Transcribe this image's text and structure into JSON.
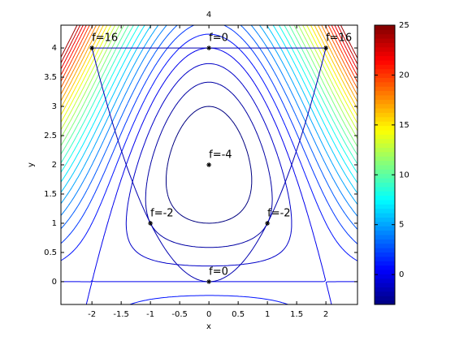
{
  "chart_data": {
    "type": "contour",
    "title": "4",
    "x_label": "x",
    "y_label": "y",
    "xlim": [
      -2.53,
      2.54
    ],
    "ylim": [
      -0.39,
      4.39
    ],
    "xticks": [
      -2,
      -1.5,
      -1,
      -0.5,
      0,
      0.5,
      1,
      1.5,
      2
    ],
    "yticks": [
      0,
      0.5,
      1,
      1.5,
      2,
      2.5,
      3,
      3.5,
      4
    ],
    "levels": [
      -3,
      -2,
      -1,
      0,
      1,
      2,
      3,
      4,
      5,
      6,
      7,
      8,
      9,
      10,
      11,
      12,
      13,
      14,
      15,
      16,
      17,
      18,
      19,
      20,
      21,
      22,
      23,
      24
    ],
    "clim": [
      -3,
      25
    ],
    "colorbar_ticks": [
      0,
      5,
      10,
      15,
      20,
      25
    ],
    "colormap": "jet",
    "line_color": "#0000b0",
    "points": [
      {
        "x": -2,
        "y": 4,
        "label": "f=16"
      },
      {
        "x": 0,
        "y": 4,
        "label": "f=0"
      },
      {
        "x": 2,
        "y": 4,
        "label": "f=16"
      },
      {
        "x": 0,
        "y": 2,
        "label": "f=-4"
      },
      {
        "x": -1,
        "y": 1,
        "label": "f=-2"
      },
      {
        "x": 1,
        "y": 1,
        "label": "f=-2"
      },
      {
        "x": 0,
        "y": 0,
        "label": "f=0"
      }
    ]
  }
}
